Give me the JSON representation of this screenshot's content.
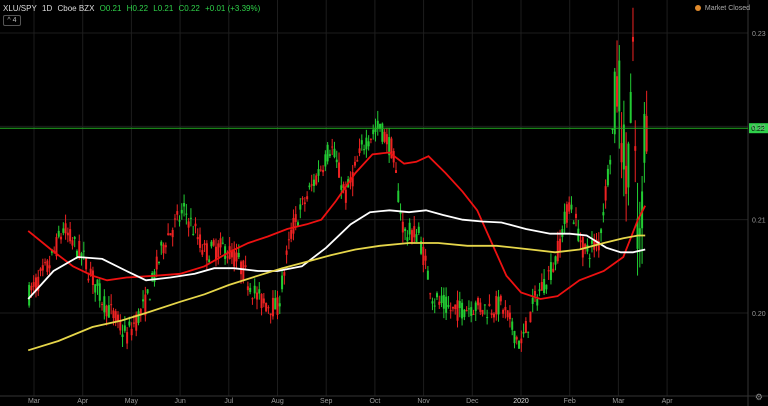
{
  "header": {
    "symbol": "XLU/SPY",
    "interval": "1D",
    "exchange": "Cboe BZX",
    "open": "O0.21",
    "high": "H0.22",
    "low": "L0.21",
    "close": "C0.22",
    "change": "+0.01 (+3.39%)",
    "collapse_label": "4"
  },
  "market_status": "Market Closed",
  "last_price_label": "0.22",
  "settings_icon": "gear-icon",
  "colors": {
    "up": "#22cc33",
    "down": "#ee2222",
    "ma_fast": "#ee1111",
    "ma_mid": "#ffffff",
    "ma_slow": "#e6d64a",
    "price_line": "#22aa22",
    "grid": "#1d1d1d"
  },
  "chart_data": {
    "type": "candlestick",
    "x_tick_labels": [
      "Mar",
      "Apr",
      "May",
      "Jun",
      "Jul",
      "Aug",
      "Sep",
      "Oct",
      "Nov",
      "Dec",
      "2020",
      "Feb",
      "Mar",
      "Apr"
    ],
    "y_tick_labels": [
      "0.23",
      "0.22",
      "0.21",
      "0.20"
    ],
    "ylim": [
      0.195,
      0.234
    ],
    "last_price": 0.22,
    "grid": true,
    "moving_averages": [
      {
        "color": "red",
        "points": [
          [
            -0.12,
            0.2088
          ],
          [
            0.35,
            0.2068
          ],
          [
            0.8,
            0.205
          ],
          [
            1.2,
            0.204
          ],
          [
            1.5,
            0.2035
          ],
          [
            1.9,
            0.2038
          ],
          [
            2.5,
            0.204
          ],
          [
            3.0,
            0.2042
          ],
          [
            3.5,
            0.205
          ],
          [
            4.0,
            0.2065
          ],
          [
            4.4,
            0.2075
          ],
          [
            4.8,
            0.2082
          ],
          [
            5.2,
            0.209
          ],
          [
            5.6,
            0.2095
          ],
          [
            5.9,
            0.21
          ],
          [
            6.2,
            0.212
          ],
          [
            6.6,
            0.215
          ],
          [
            6.95,
            0.217
          ],
          [
            7.3,
            0.2172
          ],
          [
            7.6,
            0.216
          ],
          [
            7.85,
            0.2162
          ],
          [
            8.1,
            0.2168
          ],
          [
            8.45,
            0.215
          ],
          [
            8.8,
            0.213
          ],
          [
            9.1,
            0.211
          ],
          [
            9.4,
            0.2075
          ],
          [
            9.7,
            0.204
          ],
          [
            10.0,
            0.2022
          ],
          [
            10.4,
            0.2015
          ],
          [
            10.75,
            0.2018
          ],
          [
            11.2,
            0.2035
          ],
          [
            11.7,
            0.2045
          ],
          [
            12.1,
            0.206
          ],
          [
            12.4,
            0.21
          ],
          [
            12.55,
            0.2115
          ]
        ]
      },
      {
        "color": "white",
        "points": [
          [
            -0.12,
            0.2015
          ],
          [
            0.4,
            0.2045
          ],
          [
            0.9,
            0.206
          ],
          [
            1.4,
            0.2058
          ],
          [
            1.9,
            0.2045
          ],
          [
            2.3,
            0.2035
          ],
          [
            2.8,
            0.2038
          ],
          [
            3.3,
            0.2042
          ],
          [
            3.7,
            0.2048
          ],
          [
            4.1,
            0.2048
          ],
          [
            4.6,
            0.2045
          ],
          [
            5.0,
            0.2045
          ],
          [
            5.5,
            0.205
          ],
          [
            6.0,
            0.207
          ],
          [
            6.5,
            0.2095
          ],
          [
            6.9,
            0.2108
          ],
          [
            7.3,
            0.211
          ],
          [
            7.7,
            0.2108
          ],
          [
            8.05,
            0.211
          ],
          [
            8.4,
            0.2105
          ],
          [
            8.8,
            0.21
          ],
          [
            9.2,
            0.2098
          ],
          [
            9.6,
            0.2097
          ],
          [
            10.1,
            0.209
          ],
          [
            10.6,
            0.2085
          ],
          [
            11.0,
            0.2085
          ],
          [
            11.35,
            0.2083
          ],
          [
            11.75,
            0.207
          ],
          [
            12.05,
            0.2065
          ],
          [
            12.3,
            0.2065
          ],
          [
            12.55,
            0.2068
          ]
        ]
      },
      {
        "color": "yellow",
        "points": [
          [
            -0.12,
            0.196
          ],
          [
            0.5,
            0.197
          ],
          [
            1.2,
            0.1985
          ],
          [
            1.8,
            0.1992
          ],
          [
            2.3,
            0.2
          ],
          [
            3.0,
            0.2012
          ],
          [
            3.5,
            0.202
          ],
          [
            4.0,
            0.203
          ],
          [
            4.6,
            0.204
          ],
          [
            5.1,
            0.2048
          ],
          [
            5.6,
            0.2055
          ],
          [
            6.1,
            0.2062
          ],
          [
            6.6,
            0.2068
          ],
          [
            7.1,
            0.2072
          ],
          [
            7.7,
            0.2075
          ],
          [
            8.3,
            0.2075
          ],
          [
            8.9,
            0.2072
          ],
          [
            9.5,
            0.2072
          ],
          [
            10.2,
            0.2068
          ],
          [
            10.7,
            0.2065
          ],
          [
            11.2,
            0.2068
          ],
          [
            11.7,
            0.2075
          ],
          [
            12.1,
            0.208
          ],
          [
            12.4,
            0.2083
          ],
          [
            12.55,
            0.2083
          ]
        ]
      }
    ]
  }
}
